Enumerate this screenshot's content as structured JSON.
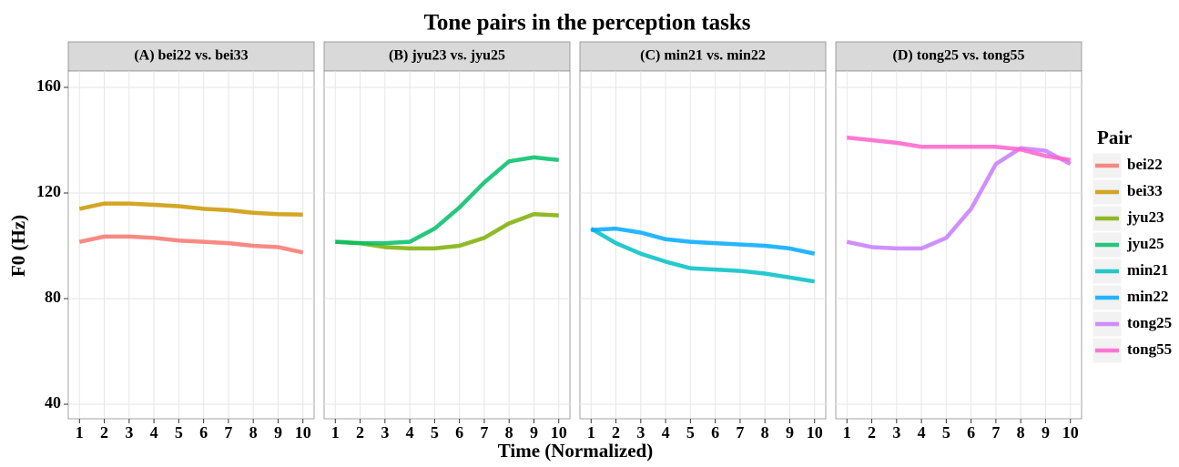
{
  "title": "Tone pairs in the perception tasks",
  "xlabel": "Time (Normalized)",
  "ylabel": "F0 (Hz)",
  "legend_title": "Pair",
  "chart_data": [
    {
      "type": "line",
      "title": "(A) bei22 vs. bei33",
      "x": [
        1,
        2,
        3,
        4,
        5,
        6,
        7,
        8,
        9,
        10
      ],
      "xlim": [
        0.55,
        10.45
      ],
      "xticks": [
        1,
        2,
        3,
        4,
        5,
        6,
        7,
        8,
        9,
        10
      ],
      "ylim": [
        34.5,
        166.2
      ],
      "yticks": [
        40,
        80,
        120,
        160
      ],
      "grid": true,
      "series": [
        {
          "name": "bei22",
          "color": "#F8766D",
          "values": [
            101.5,
            103.5,
            103.5,
            103,
            102,
            101.5,
            101,
            100,
            99.5,
            97.5
          ]
        },
        {
          "name": "bei33",
          "color": "#CD9600",
          "values": [
            114,
            116,
            116,
            115.5,
            115,
            114,
            113.5,
            112.5,
            112,
            111.8
          ]
        }
      ]
    },
    {
      "type": "line",
      "title": "(B) jyu23 vs. jyu25",
      "x": [
        1,
        2,
        3,
        4,
        5,
        6,
        7,
        8,
        9,
        10
      ],
      "xlim": [
        0.55,
        10.45
      ],
      "xticks": [
        1,
        2,
        3,
        4,
        5,
        6,
        7,
        8,
        9,
        10
      ],
      "ylim": [
        34.5,
        166.2
      ],
      "yticks": [
        40,
        80,
        120,
        160
      ],
      "grid": true,
      "series": [
        {
          "name": "jyu23",
          "color": "#7CAE00",
          "values": [
            101.5,
            101,
            99.5,
            99,
            99,
            100,
            103,
            108.5,
            112,
            111.5
          ]
        },
        {
          "name": "jyu25",
          "color": "#00BE67",
          "values": [
            101.5,
            101,
            101,
            101.5,
            106.5,
            114.5,
            124,
            132,
            133.5,
            132.5
          ]
        }
      ]
    },
    {
      "type": "line",
      "title": "(C) min21 vs. min22",
      "x": [
        1,
        2,
        3,
        4,
        5,
        6,
        7,
        8,
        9,
        10
      ],
      "xlim": [
        0.55,
        10.45
      ],
      "xticks": [
        1,
        2,
        3,
        4,
        5,
        6,
        7,
        8,
        9,
        10
      ],
      "ylim": [
        34.5,
        166.2
      ],
      "yticks": [
        40,
        80,
        120,
        160
      ],
      "grid": true,
      "series": [
        {
          "name": "min21",
          "color": "#00BFC4",
          "values": [
            106.5,
            101,
            97,
            94,
            91.5,
            91,
            90.5,
            89.5,
            88,
            86.5
          ]
        },
        {
          "name": "min22",
          "color": "#00A9FF",
          "values": [
            106,
            106.5,
            105,
            102.5,
            101.5,
            101,
            100.5,
            100,
            99,
            97
          ]
        }
      ]
    },
    {
      "type": "line",
      "title": "(D) tong25 vs. tong55",
      "x": [
        1,
        2,
        3,
        4,
        5,
        6,
        7,
        8,
        9,
        10
      ],
      "xlim": [
        0.55,
        10.45
      ],
      "xticks": [
        1,
        2,
        3,
        4,
        5,
        6,
        7,
        8,
        9,
        10
      ],
      "ylim": [
        34.5,
        166.2
      ],
      "yticks": [
        40,
        80,
        120,
        160
      ],
      "grid": true,
      "series": [
        {
          "name": "tong25",
          "color": "#C77CFF",
          "values": [
            101.5,
            99.5,
            99,
            99,
            103,
            114,
            131,
            137,
            136,
            131
          ]
        },
        {
          "name": "tong55",
          "color": "#FF61CC",
          "values": [
            141,
            140,
            139,
            137.5,
            137.5,
            137.5,
            137.5,
            136.5,
            134,
            132.5
          ]
        }
      ]
    }
  ]
}
